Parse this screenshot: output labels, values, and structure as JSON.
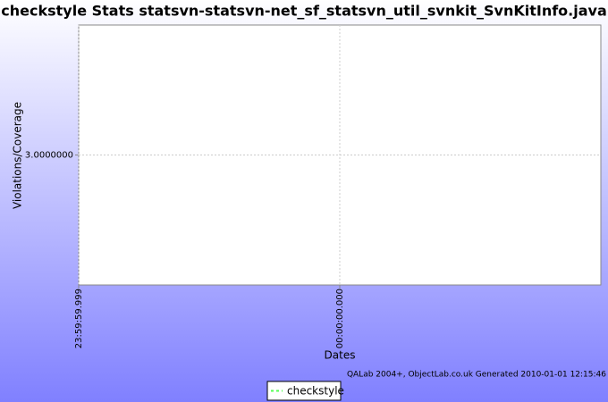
{
  "chart_data": {
    "type": "line",
    "title": "checkstyle  Stats statsvn-statsvn-net_sf_statsvn_util_svnkit_SvnKitInfo.java",
    "ylabel": "Violations/Coverage",
    "xlabel": "Dates",
    "footer": "QALab 2004+, ObjectLab.co.uk Generated 2010-01-01 12:15:46",
    "xlim": [
      -1,
      1
    ],
    "xticks": [
      {
        "value": -1,
        "label": "23:59:59.999"
      },
      {
        "value": 0,
        "label": "00:00:00.000"
      }
    ],
    "ylim": [
      2,
      4
    ],
    "yticks": [
      {
        "value": 3,
        "label": "3.0000000"
      }
    ],
    "grid": true,
    "series": [
      {
        "name": "checkstyle",
        "color": "#55ff55",
        "x": [],
        "values": []
      }
    ]
  }
}
